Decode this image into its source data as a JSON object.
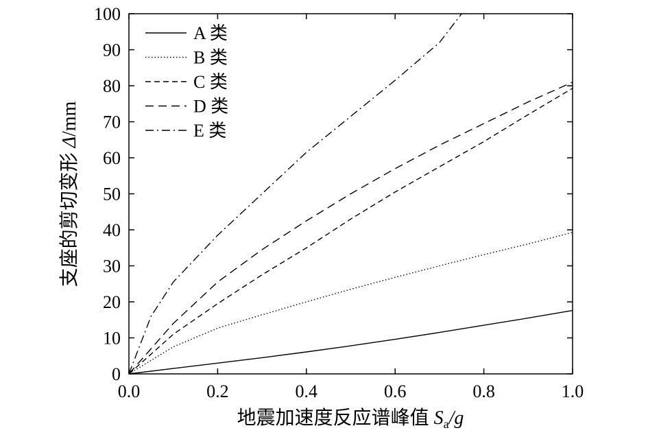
{
  "chart_data": {
    "type": "line",
    "xlabel_main": "地震加速度反应谱峰值 ",
    "xlabel_var": "S",
    "xlabel_sub": "a",
    "xlabel_tail": "/g",
    "ylabel_main": "支座的剪切变形 ",
    "ylabel_var": "Δ",
    "ylabel_tail": "/mm",
    "xlim": [
      0,
      1.0
    ],
    "ylim": [
      0,
      100
    ],
    "xticks": [
      "0.0",
      "0.2",
      "0.4",
      "0.6",
      "0.8",
      "1.0"
    ],
    "yticks": [
      "0",
      "10",
      "20",
      "30",
      "40",
      "50",
      "60",
      "70",
      "80",
      "90",
      "100"
    ],
    "grid": false,
    "legend_position": "top-left",
    "series": [
      {
        "name": "A 类",
        "style": "solid",
        "x": [
          0,
          0.1,
          0.2,
          0.3,
          0.4,
          0.5,
          0.6,
          0.7,
          0.8,
          0.9,
          1.0
        ],
        "y": [
          0,
          1.5,
          3.0,
          4.5,
          6.1,
          7.8,
          9.6,
          11.5,
          13.5,
          15.5,
          17.6
        ]
      },
      {
        "name": "B 类",
        "style": "dotted",
        "x": [
          0,
          0.1,
          0.2,
          0.3,
          0.4,
          0.5,
          0.6,
          0.7,
          0.8,
          0.9,
          1.0
        ],
        "y": [
          0,
          7.5,
          12.7,
          16.4,
          20.0,
          23.5,
          26.8,
          30.0,
          33.1,
          36.1,
          39.3
        ]
      },
      {
        "name": "C 类",
        "style": "dashed",
        "x": [
          0,
          0.1,
          0.2,
          0.3,
          0.4,
          0.5,
          0.6,
          0.7,
          0.8,
          0.9,
          1.0
        ],
        "y": [
          0,
          11.0,
          19.5,
          27.5,
          35.0,
          43.0,
          50.5,
          57.5,
          64.5,
          72.0,
          79.3
        ]
      },
      {
        "name": "D 类",
        "style": "longdash",
        "x": [
          0,
          0.1,
          0.2,
          0.3,
          0.4,
          0.5,
          0.6,
          0.7,
          0.8,
          0.9,
          1.0
        ],
        "y": [
          0,
          14.0,
          25.5,
          34.5,
          42.5,
          50.0,
          57.0,
          63.5,
          69.5,
          75.5,
          81.0
        ]
      },
      {
        "name": "E 类",
        "style": "dashdot",
        "x": [
          0,
          0.05,
          0.1,
          0.2,
          0.3,
          0.4,
          0.5,
          0.6,
          0.7,
          0.75
        ],
        "y": [
          0,
          16.0,
          25.5,
          38.5,
          50.0,
          61.5,
          71.5,
          81.5,
          92.0,
          100.0
        ]
      }
    ]
  }
}
